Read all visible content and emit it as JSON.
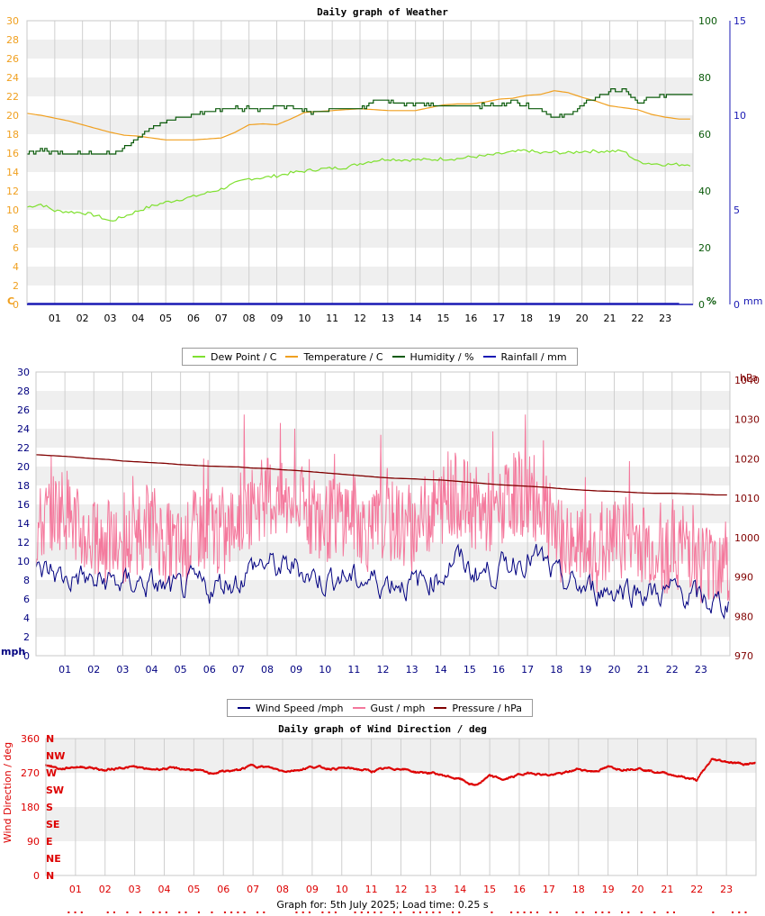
{
  "footer": "Graph for: 5th July 2025; Load time: 0.25 s",
  "hours": [
    "01",
    "02",
    "03",
    "04",
    "05",
    "06",
    "07",
    "08",
    "09",
    "10",
    "11",
    "12",
    "13",
    "14",
    "15",
    "16",
    "17",
    "18",
    "19",
    "20",
    "21",
    "22",
    "23"
  ],
  "colors": {
    "dewpoint": "#7fe030",
    "temperature": "#f0a020",
    "humidity": "#0a5a0a",
    "rainfall": "#1a1ab4",
    "windspeed": "#000080",
    "gust": "#f4789c",
    "pressure": "#800000",
    "direction": "#dd0000",
    "band": "#efefef",
    "grid": "#cfcfcf"
  },
  "chart_data": [
    {
      "type": "line",
      "title": "Daily graph of Weather",
      "x_ticks": [
        "01",
        "02",
        "03",
        "04",
        "05",
        "06",
        "07",
        "08",
        "09",
        "10",
        "11",
        "12",
        "13",
        "14",
        "15",
        "16",
        "17",
        "18",
        "19",
        "20",
        "21",
        "22",
        "23"
      ],
      "y_left": {
        "label": "C",
        "ticks": [
          "0",
          "2",
          "4",
          "6",
          "8",
          "10",
          "12",
          "14",
          "16",
          "18",
          "20",
          "22",
          "24",
          "26",
          "28",
          "30"
        ],
        "range": [
          0,
          30
        ],
        "color": "#f0a020"
      },
      "y_right_1": {
        "label": "%",
        "ticks": [
          "0",
          "20",
          "40",
          "60",
          "80",
          "100"
        ],
        "range": [
          0,
          100
        ],
        "color": "#0a5a0a"
      },
      "y_right_2": {
        "label": "mm",
        "ticks": [
          "0",
          "5",
          "10",
          "15"
        ],
        "range": [
          0,
          15
        ],
        "color": "#1a1ab4"
      },
      "legend": [
        "Dew Point / C",
        "Temperature / C",
        "Humidity / %",
        "Rainfall / mm"
      ],
      "x": [
        0,
        0.5,
        1,
        1.5,
        2,
        2.5,
        3,
        3.5,
        4,
        4.5,
        5,
        5.5,
        6,
        6.5,
        7,
        7.5,
        8,
        8.5,
        9,
        9.5,
        10,
        10.5,
        11,
        11.5,
        12,
        12.5,
        13,
        13.5,
        14,
        14.5,
        15,
        15.5,
        16,
        16.5,
        17,
        17.5,
        18,
        18.5,
        19,
        19.5,
        20,
        20.5,
        21,
        21.5,
        22,
        22.5,
        23,
        23.5
      ],
      "series": [
        {
          "name": "Dew Point / C",
          "values": [
            10.3,
            10.6,
            9.9,
            9.8,
            9.7,
            9.4,
            8.8,
            9.3,
            9.9,
            10.4,
            10.8,
            11.1,
            11.4,
            11.8,
            12.2,
            12.8,
            13.3,
            13.4,
            13.6,
            13.9,
            14.1,
            14.3,
            14.4,
            14.5,
            14.9,
            15.2,
            15.4,
            15.3,
            15.3,
            15.3,
            15.4,
            15.4,
            15.6,
            15.7,
            15.9,
            16.1,
            16.3,
            16.0,
            16.1,
            16.0,
            16.2,
            16.2,
            16.2,
            16.2,
            15.1,
            14.9,
            14.8,
            14.8
          ]
        },
        {
          "name": "Temperature / C",
          "values": [
            20.2,
            20.0,
            19.7,
            19.4,
            19.0,
            18.6,
            18.2,
            17.9,
            17.8,
            17.6,
            17.4,
            17.4,
            17.4,
            17.5,
            17.6,
            18.2,
            19.0,
            19.1,
            19.0,
            19.6,
            20.3,
            20.4,
            20.5,
            20.6,
            20.7,
            20.6,
            20.5,
            20.5,
            20.5,
            20.8,
            21.1,
            21.2,
            21.2,
            21.4,
            21.7,
            21.8,
            22.1,
            22.2,
            22.6,
            22.4,
            21.9,
            21.5,
            21.0,
            20.8,
            20.6,
            20.1,
            19.8,
            19.6
          ]
        },
        {
          "name": "Humidity / %",
          "values": [
            53,
            55,
            53,
            53,
            53,
            53,
            53,
            55,
            59,
            62,
            65,
            66,
            67,
            68,
            69,
            69,
            69,
            69,
            70,
            70,
            68,
            68,
            69,
            69,
            69,
            72,
            72,
            71,
            71,
            70,
            70,
            70,
            70,
            70,
            70,
            72,
            70,
            69,
            66,
            67,
            70,
            73,
            75,
            76,
            71,
            73,
            74,
            74
          ]
        },
        {
          "name": "Rainfall / mm",
          "values": [
            0,
            0,
            0,
            0,
            0,
            0,
            0,
            0,
            0,
            0,
            0,
            0,
            0,
            0,
            0,
            0,
            0,
            0,
            0,
            0,
            0,
            0,
            0,
            0,
            0,
            0,
            0,
            0,
            0,
            0,
            0,
            0,
            0,
            0,
            0,
            0,
            0,
            0,
            0,
            0,
            0,
            0,
            0,
            0,
            0,
            0,
            0,
            0
          ]
        }
      ]
    },
    {
      "type": "line",
      "title": "",
      "x_ticks": [
        "01",
        "02",
        "03",
        "04",
        "05",
        "06",
        "07",
        "08",
        "09",
        "10",
        "11",
        "12",
        "13",
        "14",
        "15",
        "16",
        "17",
        "18",
        "19",
        "20",
        "21",
        "22",
        "23"
      ],
      "y_left": {
        "label": "mph",
        "ticks": [
          "0",
          "2",
          "4",
          "6",
          "8",
          "10",
          "12",
          "14",
          "16",
          "18",
          "20",
          "22",
          "24",
          "26",
          "28",
          "30"
        ],
        "range": [
          0,
          30
        ],
        "color": "#000080"
      },
      "y_right": {
        "label": "hPa",
        "ticks": [
          "970",
          "980",
          "990",
          "1000",
          "1010",
          "1020",
          "1030",
          "1040"
        ],
        "range": [
          970,
          1042
        ],
        "color": "#800000"
      },
      "legend": [
        "Wind Speed /mph",
        "Gust / mph",
        "Pressure / hPa"
      ],
      "x": [
        0,
        0.5,
        1,
        1.5,
        2,
        2.5,
        3,
        3.5,
        4,
        4.5,
        5,
        5.5,
        6,
        6.5,
        7,
        7.5,
        8,
        8.5,
        9,
        9.5,
        10,
        10.5,
        11,
        11.5,
        12,
        12.5,
        13,
        13.5,
        14,
        14.5,
        15,
        15.5,
        16,
        16.5,
        17,
        17.5,
        18,
        18.5,
        19,
        19.5,
        20,
        20.5,
        21,
        21.5,
        22,
        22.5,
        23,
        23.5
      ],
      "series": [
        {
          "name": "Wind Speed /mph",
          "values": [
            8.5,
            9.0,
            8.0,
            8.5,
            7.5,
            8.0,
            7.5,
            7.8,
            7.5,
            7.0,
            6.8,
            7.5,
            7.0,
            7.8,
            8.0,
            9.5,
            9.8,
            9.0,
            9.5,
            8.5,
            8.0,
            8.5,
            8.0,
            8.0,
            7.8,
            8.0,
            7.5,
            8.0,
            8.5,
            10.5,
            9.0,
            8.8,
            9.0,
            10.0,
            10.5,
            10.0,
            8.0,
            7.5,
            7.0,
            7.0,
            7.0,
            7.2,
            6.8,
            6.5,
            6.8,
            6.5,
            5.8,
            5.5
          ]
        },
        {
          "name": "Gust / mph",
          "values": [
            13,
            15,
            16,
            13,
            12,
            12,
            11,
            13,
            14,
            12,
            11,
            13,
            14,
            12,
            15,
            16,
            17,
            16,
            16,
            15,
            14,
            15,
            15,
            13,
            14,
            14,
            13,
            15,
            16,
            17,
            16,
            15,
            15,
            17,
            17,
            16,
            12,
            12,
            11,
            11,
            12,
            13,
            12,
            11,
            11,
            12,
            10,
            10
          ]
        },
        {
          "name": "Pressure / hPa",
          "values": [
            1021,
            1020.8,
            1020.6,
            1020.3,
            1020.0,
            1019.8,
            1019.4,
            1019.2,
            1019.0,
            1018.8,
            1018.5,
            1018.3,
            1018.1,
            1018.0,
            1017.9,
            1017.6,
            1017.5,
            1017.2,
            1017.0,
            1016.7,
            1016.4,
            1016.1,
            1015.8,
            1015.5,
            1015.2,
            1015.0,
            1014.9,
            1014.7,
            1014.6,
            1014.3,
            1014.0,
            1013.7,
            1013.4,
            1013.2,
            1013.0,
            1012.8,
            1012.5,
            1012.2,
            1012.0,
            1011.8,
            1011.7,
            1011.5,
            1011.3,
            1011.2,
            1011.2,
            1011.1,
            1011.0,
            1010.8
          ]
        }
      ]
    },
    {
      "type": "scatter",
      "title": "Daily graph of Wind Direction / deg",
      "x_ticks": [
        "01",
        "02",
        "03",
        "04",
        "05",
        "06",
        "07",
        "08",
        "09",
        "10",
        "11",
        "12",
        "13",
        "14",
        "15",
        "16",
        "17",
        "18",
        "19",
        "20",
        "21",
        "22",
        "23"
      ],
      "y_left": {
        "label": "Wind Direction / deg",
        "ticks": [
          "0",
          "90",
          "180",
          "270",
          "360"
        ],
        "range": [
          0,
          360
        ]
      },
      "compass_labels": [
        "N",
        "NE",
        "E",
        "SE",
        "S",
        "SW",
        "W",
        "NW",
        "N"
      ],
      "x": [
        0,
        0.5,
        1,
        1.5,
        2,
        2.5,
        3,
        3.5,
        4,
        4.5,
        5,
        5.5,
        6,
        6.5,
        7,
        7.5,
        8,
        8.5,
        9,
        9.5,
        10,
        10.5,
        11,
        11.5,
        12,
        12.5,
        13,
        13.5,
        14,
        14.5,
        15,
        15.5,
        16,
        16.5,
        17,
        17.5,
        18,
        18.5,
        19,
        19.5,
        20,
        20.5,
        21,
        21.5,
        22,
        22.5,
        23,
        23.5
      ],
      "series": [
        {
          "name": "Direction",
          "values": [
            292,
            280,
            286,
            285,
            276,
            284,
            285,
            278,
            282,
            280,
            278,
            268,
            274,
            276,
            290,
            284,
            275,
            278,
            286,
            282,
            282,
            280,
            274,
            280,
            282,
            272,
            270,
            262,
            253,
            236,
            260,
            252,
            265,
            270,
            264,
            268,
            280,
            274,
            284,
            280,
            284,
            274,
            268,
            260,
            250,
            304,
            300,
            294
          ]
        }
      ]
    }
  ]
}
